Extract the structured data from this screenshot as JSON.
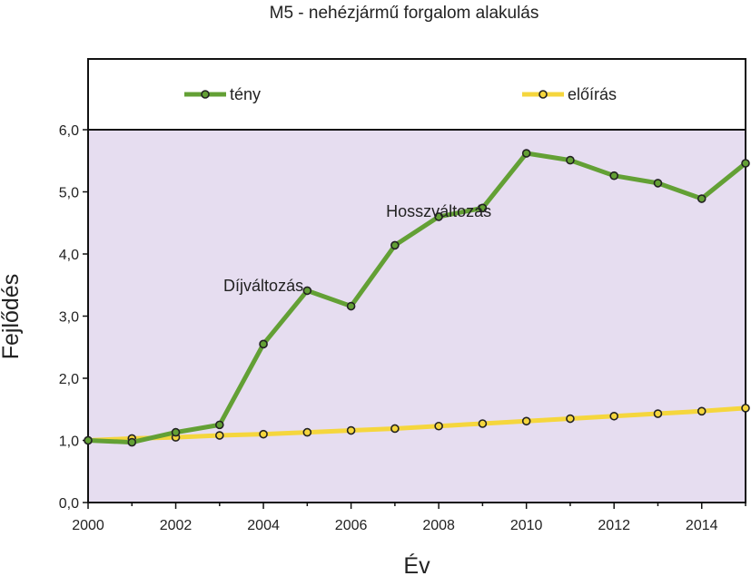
{
  "chart_data": {
    "type": "line",
    "title": "M5 - nehézjármű forgalom alakulás",
    "xlabel": "Év",
    "ylabel": "Fejlődés",
    "xlim": [
      2000,
      2015
    ],
    "ylim": [
      0,
      6
    ],
    "x_ticks": [
      "2000",
      "2002",
      "2004",
      "2006",
      "2008",
      "2010",
      "2012",
      "2014"
    ],
    "y_ticks": [
      "0,0",
      "1,0",
      "2,0",
      "3,0",
      "4,0",
      "5,0",
      "6,0"
    ],
    "plot_background": "#e6ddf0",
    "legend_placement": "top, above plot area",
    "x": [
      2000,
      2001,
      2002,
      2003,
      2004,
      2005,
      2006,
      2007,
      2008,
      2009,
      2010,
      2011,
      2012,
      2013,
      2014,
      2015
    ],
    "series": [
      {
        "name": "tény",
        "color": "#63a035",
        "values": [
          1.0,
          0.97,
          1.13,
          1.25,
          2.55,
          3.41,
          3.16,
          4.14,
          4.6,
          4.74,
          5.62,
          5.51,
          5.26,
          5.14,
          4.89,
          5.46
        ]
      },
      {
        "name": "előírás",
        "color": "#f5d63d",
        "values": [
          1.0,
          1.03,
          1.05,
          1.08,
          1.1,
          1.13,
          1.16,
          1.19,
          1.23,
          1.27,
          1.31,
          1.35,
          1.39,
          1.43,
          1.47,
          1.52
        ]
      }
    ],
    "annotations": [
      {
        "text": "Díjváltozás",
        "x": 2004.0,
        "y": 3.4
      },
      {
        "text": "Hosszváltozás",
        "x": 2008.0,
        "y": 4.6
      }
    ]
  }
}
